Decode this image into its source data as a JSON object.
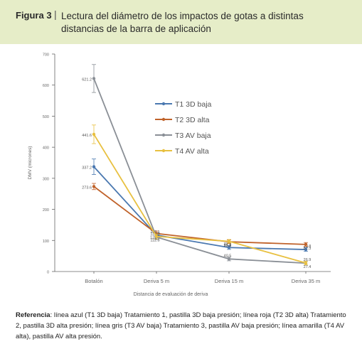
{
  "figure": {
    "label": "Figura 3",
    "separator": "|",
    "title": "Lectura del diámetro de los impactos de gotas a distintas distancias de la barra de aplicación"
  },
  "caption": {
    "lead": "Referencia",
    "text": ": línea azul (T1 3D baja) Tratamiento 1, pastilla 3D baja presión; línea roja (T2 3D alta) Tratamiento 2, pastilla 3D alta presión; línea gris (T3 AV baja) Tratamiento 3, pastilla AV baja presión; línea amarilla (T4 AV alta), pastilla AV alta presión."
  },
  "colors": {
    "header_bg": "#e6edc8",
    "T1": "#4a78b0",
    "T2": "#c0622a",
    "T3": "#8a8f96",
    "T4": "#e8c040"
  },
  "chart_data": {
    "type": "line",
    "title": "",
    "xlabel": "Distancia de evaluación de deriva",
    "ylabel": "DMV (micrones)",
    "categories": [
      "Botalón",
      "Deriva 5 m",
      "Deriva 15 m",
      "Deriva 35 m"
    ],
    "ylim": [
      0,
      700
    ],
    "yticks": [
      0,
      100,
      200,
      300,
      400,
      500,
      600,
      700
    ],
    "grid": false,
    "legend_position": "right",
    "series": [
      {
        "name": "T1 3D baja",
        "color": "#4a78b0",
        "values": [
          337.2,
          117.1,
          77.2,
          70.8
        ],
        "labels": [
          "337.2",
          "117.1",
          "77.2",
          "70.8"
        ],
        "error": [
          25,
          8,
          6,
          6
        ]
      },
      {
        "name": "T2 3D alta",
        "color": "#c0622a",
        "values": [
          273.6,
          122.3,
          95.8,
          87.3
        ],
        "labels": [
          "273.6",
          "122.3",
          "95.8",
          "87.3"
        ],
        "error": [
          10,
          8,
          6,
          6
        ]
      },
      {
        "name": "T3 AV baja",
        "color": "#8a8f96",
        "values": [
          621.2,
          110.9,
          40.5,
          26.9
        ],
        "labels": [
          "621.2",
          "110.9",
          "40.5",
          "26.9"
        ],
        "error": [
          45,
          8,
          6,
          6
        ]
      },
      {
        "name": "T4 AV alta",
        "color": "#e8c040",
        "values": [
          441.6,
          112.8,
          97.2,
          27.4
        ],
        "labels": [
          "441.6",
          "112.8",
          "97.2",
          "27.4"
        ],
        "error": [
          30,
          8,
          6,
          6
        ]
      }
    ]
  }
}
